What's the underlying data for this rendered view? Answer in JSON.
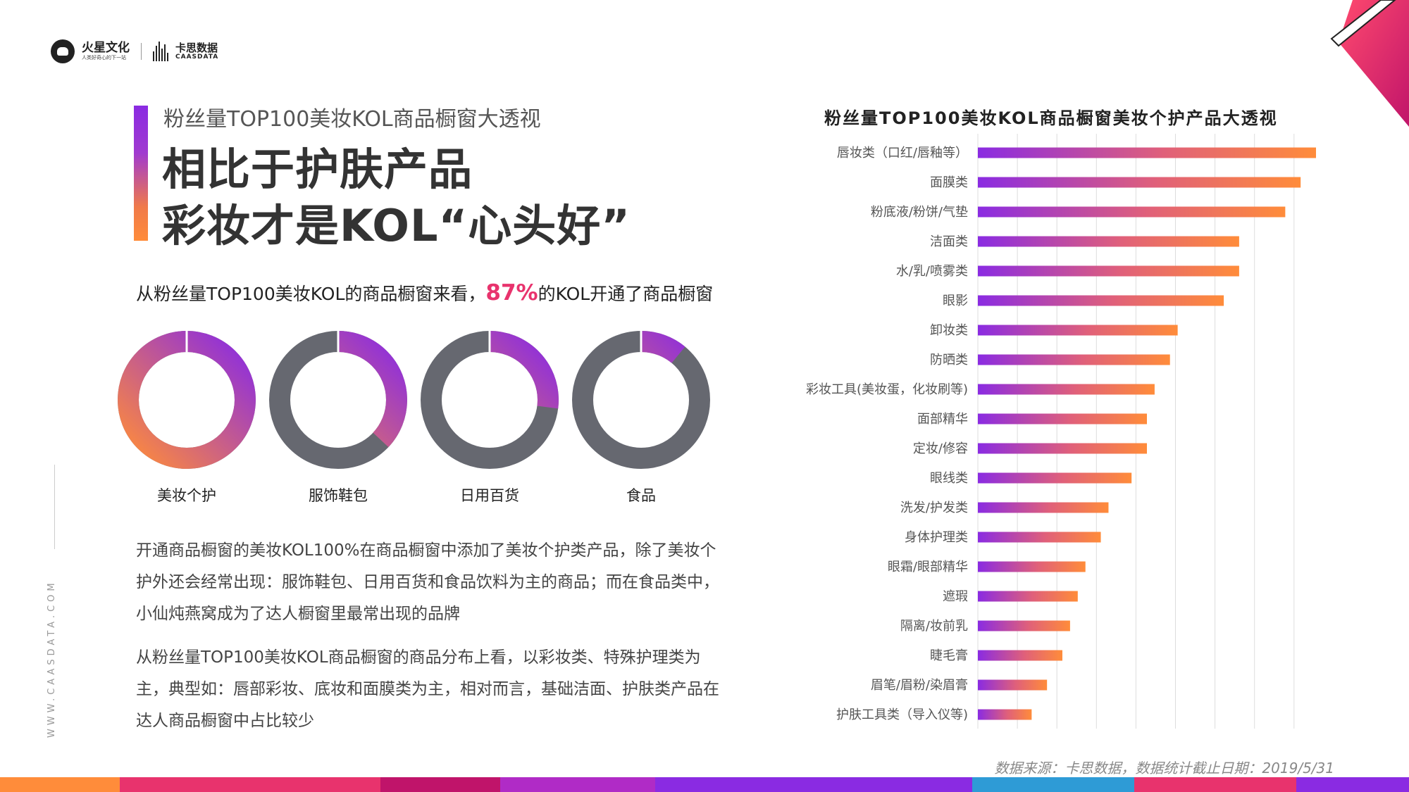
{
  "header": {
    "brand1": "火星文化",
    "brand1_tagline": "人类好奇心的下一站",
    "brand2": "卡思数据",
    "brand2_sub": "CAASDATA"
  },
  "subtitle": "粉丝量TOP100美妆KOL商品橱窗大透视",
  "title_line1": "相比于护肤产品",
  "title_line2": "彩妆才是KOL“心头好”",
  "stat": {
    "prefix": "从粉丝量TOP100美妆KOL的商品橱窗来看，",
    "value": "87%",
    "suffix": "的KOL开通了商品橱窗"
  },
  "donuts": [
    {
      "label": "美妆个护",
      "share": 1.0
    },
    {
      "label": "服饰鞋包",
      "share": 0.37
    },
    {
      "label": "日用百货",
      "share": 0.27
    },
    {
      "label": "食品",
      "share": 0.11
    }
  ],
  "paragraphs": [
    "开通商品橱窗的美妆KOL100%在商品橱窗中添加了美妆个护类产品，除了美妆个护外还会经常出现：服饰鞋包、日用百货和食品饮料为主的商品；而在食品类中，小仙炖燕窝成为了达人橱窗里最常出现的品牌",
    "从粉丝量TOP100美妆KOL商品橱窗的商品分布上看，以彩妆类、特殊护理类为主，典型如：唇部彩妆、底妆和面膜类为主，相对而言，基础洁面、护肤类产品在达人商品橱窗中占比较少"
  ],
  "side_url": "WWW.CAASDATA.COM",
  "source": "数据来源：卡思数据，数据统计截止日期：2019/5/31",
  "colors": {
    "gradient_start": "#8a2be2",
    "gradient_end": "#ff8c3a",
    "donut_gray": "#666870",
    "highlight": "#e8336d"
  },
  "chart_data": {
    "type": "bar",
    "orientation": "horizontal",
    "title": "粉丝量TOP100美妆KOL商品橱窗美妆个护产品大透视",
    "categories": [
      "唇妆类（口红/唇釉等）",
      "面膜类",
      "粉底液/粉饼/气垫",
      "洁面类",
      "水/乳/喷雾类",
      "眼影",
      "卸妆类",
      "防晒类",
      "彩妆工具(美妆蛋，化妆刷等)",
      "面部精华",
      "定妆/修容",
      "眼线类",
      "洗发/护发类",
      "身体护理类",
      "眼霜/眼部精华",
      "遮瑕",
      "隔离/妆前乳",
      "睫毛膏",
      "眉笔/眉粉/染眉膏",
      "护肤工具类（导入仪等)"
    ],
    "values": [
      44,
      42,
      40,
      34,
      34,
      32,
      26,
      25,
      23,
      22,
      22,
      20,
      17,
      16,
      14,
      13,
      12,
      11,
      9,
      7
    ],
    "xlim": [
      0,
      44
    ],
    "grid": true,
    "legend": "none"
  }
}
